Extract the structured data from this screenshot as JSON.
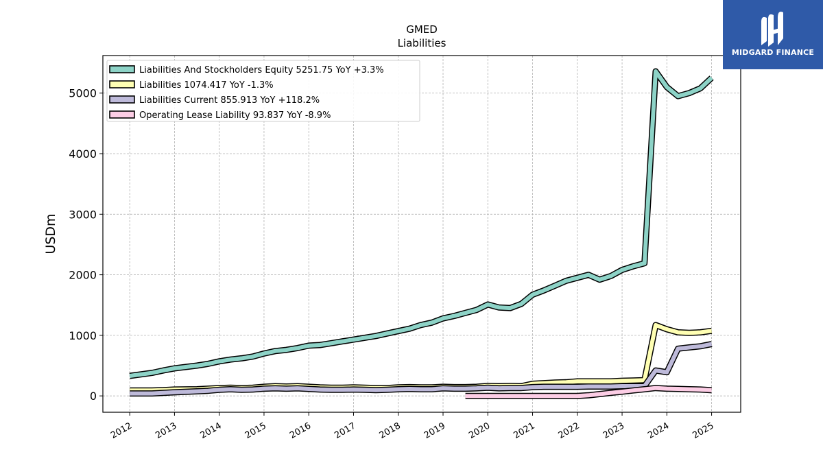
{
  "logo": {
    "text": "MIDGARD FINANCE"
  },
  "chart_data": {
    "type": "line",
    "title": "GMED",
    "subtitle": "Liabilities",
    "xlabel": "",
    "ylabel": "USDm",
    "ylim": [
      -270,
      5620
    ],
    "xlim": [
      2011.4,
      2025.65
    ],
    "yticks": [
      0,
      1000,
      2000,
      3000,
      4000,
      5000
    ],
    "xtick_labels": [
      "2012",
      "2013",
      "2014",
      "2015",
      "2016",
      "2017",
      "2018",
      "2019",
      "2020",
      "2021",
      "2022",
      "2023",
      "2024",
      "2025"
    ],
    "grid": true,
    "legend_position": "top-left",
    "series": [
      {
        "name": "Liabilities And Stockholders Equity",
        "legend": "Liabilities And Stockholders Equity  5251.75 YoY +3.3%",
        "color": "#8dd3c7",
        "x": [
          2012.0,
          2012.5,
          2012.75,
          2013.0,
          2013.5,
          2013.75,
          2014.0,
          2014.25,
          2014.5,
          2014.75,
          2015.0,
          2015.25,
          2015.5,
          2015.75,
          2016.0,
          2016.25,
          2016.5,
          2016.75,
          2017.0,
          2017.25,
          2017.5,
          2017.75,
          2018.0,
          2018.25,
          2018.5,
          2018.75,
          2019.0,
          2019.25,
          2019.5,
          2019.75,
          2020.0,
          2020.25,
          2020.5,
          2020.75,
          2021.0,
          2021.25,
          2021.5,
          2021.75,
          2022.0,
          2022.25,
          2022.5,
          2022.75,
          2023.0,
          2023.25,
          2023.5,
          2023.75,
          2024.0,
          2024.25,
          2024.5,
          2024.75,
          2025.0
        ],
        "y": [
          330,
          380,
          420,
          455,
          500,
          530,
          570,
          600,
          620,
          650,
          700,
          740,
          760,
          790,
          830,
          840,
          870,
          900,
          930,
          960,
          990,
          1030,
          1070,
          1110,
          1170,
          1210,
          1280,
          1320,
          1370,
          1420,
          1510,
          1460,
          1450,
          1520,
          1670,
          1740,
          1820,
          1900,
          1950,
          2000,
          1920,
          1980,
          2080,
          2140,
          2190,
          5360,
          5100,
          4950,
          5000,
          5080,
          5252
        ]
      },
      {
        "name": "Liabilities",
        "legend": "Liabilities  1074.417 YoY -1.3%",
        "color": "#ffffb3",
        "x": [
          2012.0,
          2012.5,
          2012.75,
          2013.0,
          2013.5,
          2013.75,
          2014.0,
          2014.25,
          2014.5,
          2014.75,
          2015.0,
          2015.25,
          2015.5,
          2015.75,
          2016.0,
          2016.25,
          2016.5,
          2016.75,
          2017.0,
          2017.25,
          2017.5,
          2017.75,
          2018.0,
          2018.25,
          2018.5,
          2018.75,
          2019.0,
          2019.25,
          2019.5,
          2019.75,
          2020.0,
          2020.25,
          2020.5,
          2020.75,
          2021.0,
          2021.25,
          2021.5,
          2021.75,
          2022.0,
          2022.25,
          2022.5,
          2022.75,
          2023.0,
          2023.25,
          2023.5,
          2023.75,
          2024.0,
          2024.25,
          2024.5,
          2024.75,
          2025.0
        ],
        "y": [
          90,
          90,
          95,
          105,
          110,
          120,
          130,
          135,
          130,
          135,
          150,
          160,
          155,
          160,
          150,
          140,
          135,
          135,
          140,
          135,
          130,
          130,
          140,
          145,
          140,
          140,
          150,
          145,
          145,
          150,
          165,
          160,
          165,
          160,
          200,
          210,
          220,
          225,
          240,
          240,
          240,
          240,
          250,
          255,
          260,
          1170,
          1100,
          1050,
          1040,
          1050,
          1074
        ]
      },
      {
        "name": "Liabilities Current",
        "legend": "Liabilities Current  855.913 YoY +118.2%",
        "color": "#bebada",
        "x": [
          2012.0,
          2012.5,
          2012.75,
          2013.0,
          2013.5,
          2013.75,
          2014.0,
          2014.25,
          2014.5,
          2014.75,
          2015.0,
          2015.25,
          2015.5,
          2015.75,
          2016.0,
          2016.25,
          2016.5,
          2016.75,
          2017.0,
          2017.25,
          2017.5,
          2017.75,
          2018.0,
          2018.25,
          2018.5,
          2018.75,
          2019.0,
          2019.25,
          2019.5,
          2019.75,
          2020.0,
          2020.25,
          2020.5,
          2020.75,
          2021.0,
          2021.25,
          2021.5,
          2021.75,
          2022.0,
          2022.25,
          2022.5,
          2022.75,
          2023.0,
          2023.25,
          2023.5,
          2023.75,
          2024.0,
          2024.25,
          2024.5,
          2024.75,
          2025.0
        ],
        "y": [
          40,
          40,
          50,
          60,
          75,
          85,
          100,
          110,
          100,
          105,
          120,
          125,
          120,
          125,
          115,
          105,
          100,
          100,
          105,
          100,
          95,
          100,
          110,
          115,
          110,
          110,
          125,
          120,
          120,
          125,
          135,
          125,
          130,
          130,
          145,
          150,
          150,
          150,
          150,
          155,
          155,
          155,
          160,
          160,
          160,
          420,
          390,
          780,
          800,
          820,
          856
        ]
      },
      {
        "name": "Operating Lease Liability",
        "legend": "Operating Lease Liability  93.837 YoY -8.9%",
        "color": "#fccde5",
        "x": [
          2019.5,
          2019.75,
          2020.0,
          2020.25,
          2020.5,
          2020.75,
          2021.0,
          2021.25,
          2021.5,
          2021.75,
          2022.0,
          2022.25,
          2022.5,
          2022.75,
          2023.0,
          2023.25,
          2023.5,
          2023.75,
          2024.0,
          2024.25,
          2024.5,
          2024.75,
          2025.0
        ],
        "y": [
          0,
          0,
          0,
          0,
          0,
          0,
          0,
          0,
          0,
          0,
          0,
          10,
          30,
          50,
          70,
          90,
          110,
          130,
          120,
          115,
          110,
          105,
          94
        ]
      }
    ]
  }
}
